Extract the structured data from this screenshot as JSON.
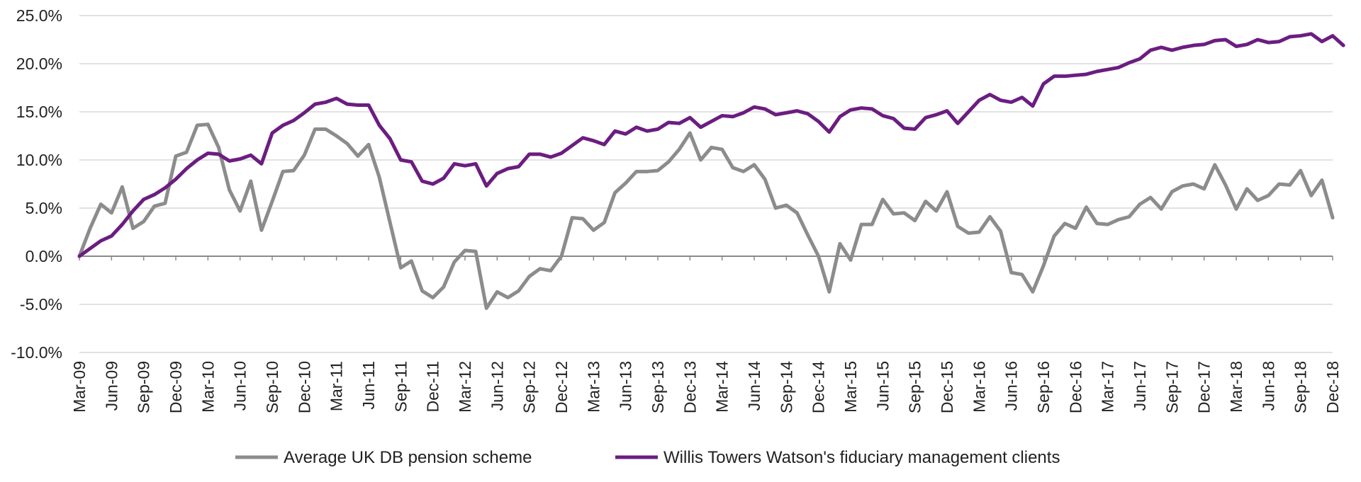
{
  "chart_data": {
    "type": "line",
    "title": "",
    "xlabel": "",
    "ylabel": "",
    "ylim": [
      -10,
      25
    ],
    "y_ticks": [
      25,
      20,
      15,
      10,
      5,
      0,
      -5,
      -10
    ],
    "y_tick_labels": [
      "25.0%",
      "20.0%",
      "15.0%",
      "10.0%",
      "5.0%",
      "0.0%",
      "-5.0%",
      "-10.0%"
    ],
    "x_tick_labels": [
      "Mar-09",
      "Jun-09",
      "Sep-09",
      "Dec-09",
      "Mar-10",
      "Jun-10",
      "Sep-10",
      "Dec-10",
      "Mar-11",
      "Jun-11",
      "Sep-11",
      "Dec-11",
      "Mar-12",
      "Jun-12",
      "Sep-12",
      "Dec-12",
      "Mar-13",
      "Jun-13",
      "Sep-13",
      "Dec-13",
      "Mar-14",
      "Jun-14",
      "Sep-14",
      "Dec-14",
      "Mar-15",
      "Jun-15",
      "Sep-15",
      "Dec-15",
      "Mar-16",
      "Jun-16",
      "Sep-16",
      "Dec-16",
      "Mar-17",
      "Jun-17",
      "Sep-17",
      "Dec-17",
      "Mar-18",
      "Jun-18",
      "Sep-18",
      "Dec-18"
    ],
    "x_start": "Mar-09",
    "x_end": "Dec-18",
    "grid": "horizontal",
    "legend_position": "bottom",
    "series": [
      {
        "name": "Average UK DB pension scheme",
        "color": "#8c8c8c",
        "values": [
          0,
          2.9,
          5.4,
          4.5,
          7.2,
          2.9,
          3.6,
          5.2,
          5.5,
          10.4,
          10.8,
          13.6,
          13.7,
          11.3,
          6.9,
          4.7,
          7.8,
          2.7,
          5.7,
          8.8,
          8.9,
          10.5,
          13.2,
          13.2,
          12.5,
          11.7,
          10.4,
          11.6,
          8.2,
          3.5,
          -1.2,
          -0.5,
          -3.6,
          -4.3,
          -3.2,
          -0.6,
          0.6,
          0.5,
          -5.4,
          -3.7,
          -4.3,
          -3.6,
          -2.1,
          -1.3,
          -1.5,
          0,
          4,
          3.9,
          2.7,
          3.5,
          6.6,
          7.6,
          8.8,
          8.8,
          8.9,
          9.8,
          11.1,
          12.8,
          10,
          11.3,
          11.1,
          9.2,
          8.8,
          9.5,
          8,
          5,
          5.3,
          4.5,
          2.2,
          0,
          -3.7,
          1.3,
          -0.4,
          3.3,
          3.3,
          5.9,
          4.4,
          4.5,
          3.7,
          5.7,
          4.7,
          6.7,
          3.1,
          2.4,
          2.5,
          4.1,
          2.6,
          -1.7,
          -1.9,
          -3.7,
          -1,
          2.1,
          3.4,
          2.9,
          5.1,
          3.4,
          3.3,
          3.8,
          4.1,
          5.4,
          6.1,
          4.9,
          6.7,
          7.3,
          7.5,
          7,
          9.5,
          7.4,
          4.9,
          7,
          5.8,
          6.3,
          7.5,
          7.4,
          8.9,
          6.3,
          7.9,
          4
        ]
      },
      {
        "name": "Willis Towers Watson's fiduciary management clients",
        "color": "#6b1d80",
        "values": [
          0,
          0.8,
          1.6,
          2.1,
          3.3,
          4.7,
          5.9,
          6.4,
          7.1,
          8,
          9.1,
          10,
          10.7,
          10.6,
          9.9,
          10.1,
          10.5,
          9.6,
          12.8,
          13.6,
          14.1,
          14.9,
          15.8,
          16,
          16.4,
          15.8,
          15.7,
          15.7,
          13.6,
          12.2,
          10,
          9.8,
          7.8,
          7.5,
          8.1,
          9.6,
          9.4,
          9.6,
          7.3,
          8.6,
          9.1,
          9.3,
          10.6,
          10.6,
          10.3,
          10.7,
          11.5,
          12.3,
          12,
          11.6,
          13,
          12.7,
          13.4,
          13,
          13.2,
          13.9,
          13.8,
          14.4,
          13.4,
          14,
          14.6,
          14.5,
          14.9,
          15.5,
          15.3,
          14.7,
          14.9,
          15.1,
          14.8,
          14,
          12.9,
          14.5,
          15.2,
          15.4,
          15.3,
          14.6,
          14.3,
          13.3,
          13.2,
          14.4,
          14.7,
          15.1,
          13.8,
          15,
          16.2,
          16.8,
          16.2,
          16,
          16.5,
          15.6,
          17.9,
          18.7,
          18.7,
          18.8,
          18.9,
          19.2,
          19.4,
          19.6,
          20.1,
          20.5,
          21.4,
          21.7,
          21.4,
          21.7,
          21.9,
          22,
          22.4,
          22.5,
          21.8,
          22,
          22.5,
          22.2,
          22.3,
          22.8,
          22.9,
          23.1,
          22.3,
          22.9,
          21.9
        ]
      }
    ]
  }
}
